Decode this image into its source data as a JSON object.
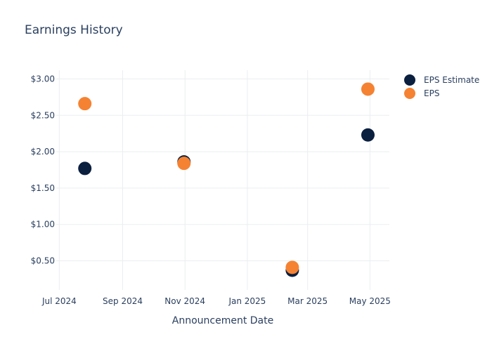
{
  "chart_data": {
    "type": "scatter",
    "title": "Earnings History",
    "xlabel": "Announcement Date",
    "ylabel": "",
    "x_ticks": [
      "Jul 2024",
      "Sep 2024",
      "Nov 2024",
      "Jan 2025",
      "Mar 2025",
      "May 2025"
    ],
    "y_ticks": [
      "$0.50",
      "$1.00",
      "$1.50",
      "$2.00",
      "$2.50",
      "$3.00"
    ],
    "ylim": [
      0.1,
      3.12
    ],
    "xlim": [
      "2024-06-28",
      "2025-05-20"
    ],
    "grid": true,
    "legend_position": "top-right",
    "series": [
      {
        "name": "EPS Estimate",
        "color": "#0b1f3f",
        "x": [
          "2024-07-26",
          "2024-10-31",
          "2025-02-14",
          "2025-04-29"
        ],
        "y": [
          1.77,
          1.86,
          0.37,
          2.23
        ]
      },
      {
        "name": "EPS",
        "color": "#f58232",
        "x": [
          "2024-07-26",
          "2024-10-31",
          "2025-02-14",
          "2025-04-29"
        ],
        "y": [
          2.66,
          1.84,
          0.41,
          2.86
        ]
      }
    ]
  }
}
